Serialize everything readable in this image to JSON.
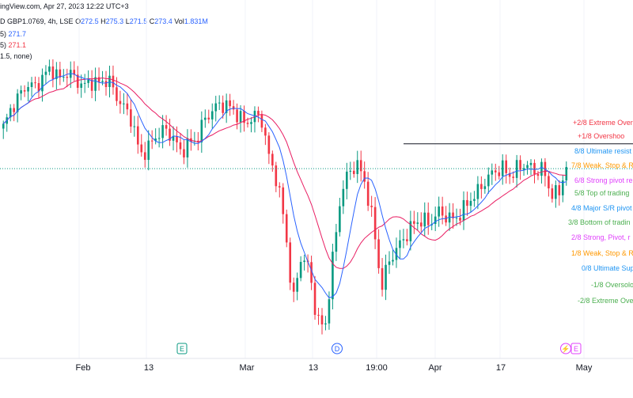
{
  "header": {
    "line1": {
      "prefix": "ingView.com, Apr 27, 2023 12:22 UTC+3",
      "symbol": "D GBP1.0769, 4h, LSE",
      "o_label": "O",
      "o": "272.5",
      "h_label": "H",
      "h": "275.3",
      "l_label": "L",
      "l": "271.5",
      "c_label": "C",
      "c": "273.4",
      "vol_label": "Vol",
      "vol": "1.831M"
    },
    "line2": {
      "prefix": "5)",
      "value": "271.7"
    },
    "line3": {
      "prefix": "5)",
      "value": "271.1"
    },
    "line4": {
      "prefix": "1.5, none)"
    }
  },
  "colors": {
    "up": "#089981",
    "down": "#f23645",
    "ma_fast": "#2962ff",
    "ma_slow": "#e91e63",
    "grid": "#f0f3fa"
  },
  "chart_data": {
    "type": "candlestick",
    "x_ticks": [
      "Feb",
      "13",
      "Mar",
      "13",
      "19:00",
      "Apr",
      "17",
      "May"
    ],
    "price_range": [
      250,
      290
    ],
    "events": [
      {
        "label": "E",
        "kind": "earnings"
      },
      {
        "label": "D",
        "kind": "dividend"
      },
      {
        "label": "⚡",
        "kind": "split"
      },
      {
        "label": "E",
        "kind": "earnings"
      }
    ],
    "horizontal_line": 276.0,
    "dotted_line": 273.4,
    "murrey_levels": [
      {
        "label": "+2/8 Extreme Over",
        "price": 279.0,
        "color": "#f23645"
      },
      {
        "label": "+1/8 Overshoo",
        "price": 278.0,
        "color": "#f23645"
      },
      {
        "label": "8/8 Ultimate resist",
        "price": 277.0,
        "color": "#2196f3"
      },
      {
        "label": "7/8 Weak, Stop & R",
        "price": 276.0,
        "color": "#ff9800"
      },
      {
        "label": "6/8 Strong pivot re",
        "price": 275.0,
        "color": "#e040fb"
      },
      {
        "label": "5/8 Top of trading",
        "price": 274.0,
        "color": "#4caf50"
      },
      {
        "label": "4/8 Major S/R pivot",
        "price": 273.0,
        "color": "#2196f3"
      },
      {
        "label": "3/8 Bottom of tradin",
        "price": 272.0,
        "color": "#4caf50"
      },
      {
        "label": "2/8 Strong, Pivot, r",
        "price": 271.0,
        "color": "#e040fb"
      },
      {
        "label": "1/8 Weak, Stop & R",
        "price": 270.0,
        "color": "#ff9800"
      },
      {
        "label": "0/8 Ultimate Sup",
        "price": 269.0,
        "color": "#2196f3"
      },
      {
        "label": "-1/8 Oversolo",
        "price": 268.0,
        "color": "#4caf50"
      },
      {
        "label": "-2/8 Extreme Ove",
        "price": 267.0,
        "color": "#4caf50"
      }
    ],
    "close_path": [
      278,
      280.5,
      282,
      283.5,
      283,
      284.5,
      285.5,
      284,
      285,
      284,
      283.2,
      283.8,
      283.5,
      284.2,
      282,
      280.5,
      279,
      274.5,
      275.5,
      277,
      277.8,
      277,
      275,
      276,
      276.5,
      279,
      280.2,
      281,
      280.7,
      279.8,
      278.5,
      279.3,
      279.6,
      274.5,
      271.5,
      266,
      256,
      262,
      260.5,
      254,
      253,
      262,
      270,
      272.5,
      273.5,
      271,
      266,
      258,
      261.5,
      263,
      264.5,
      266,
      266.5,
      266,
      267.5,
      267,
      266.5,
      267.5,
      269,
      270,
      271.5,
      272.5,
      273,
      272,
      273,
      273.5,
      272.5,
      273,
      270,
      269.5,
      273.4
    ]
  }
}
